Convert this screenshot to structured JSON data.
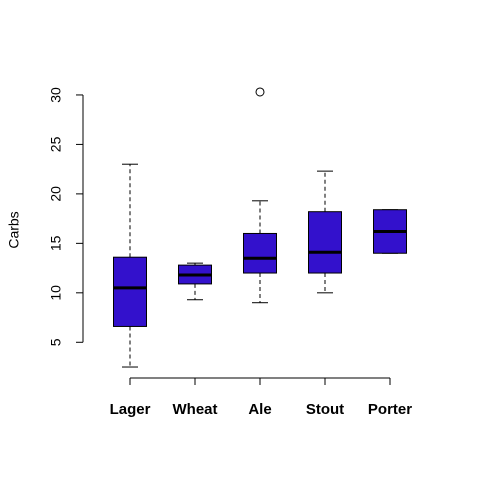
{
  "chart_data": {
    "type": "box",
    "y_label": "Carbs",
    "color": "#3311cc",
    "categories": [
      "Lager",
      "Wheat",
      "Ale",
      "Stout",
      "Porter"
    ],
    "boxes": [
      {
        "min": 2.5,
        "q1": 6.6,
        "median": 10.5,
        "q3": 13.6,
        "max": 23.0,
        "outliers": []
      },
      {
        "min": 9.3,
        "q1": 10.9,
        "median": 11.8,
        "q3": 12.8,
        "max": 13.0,
        "outliers": []
      },
      {
        "min": 9.0,
        "q1": 12.0,
        "median": 13.5,
        "q3": 16.0,
        "max": 19.3,
        "outliers": [
          30.3
        ]
      },
      {
        "min": 10.0,
        "q1": 12.0,
        "median": 14.1,
        "q3": 18.2,
        "max": 22.3,
        "outliers": []
      },
      {
        "min": 14.0,
        "q1": 14.0,
        "median": 16.2,
        "q3": 18.4,
        "max": 18.4,
        "outliers": []
      }
    ],
    "ylim": [
      1.39,
      31.41
    ],
    "yticks": [
      5,
      10,
      15,
      20,
      25,
      30
    ]
  }
}
